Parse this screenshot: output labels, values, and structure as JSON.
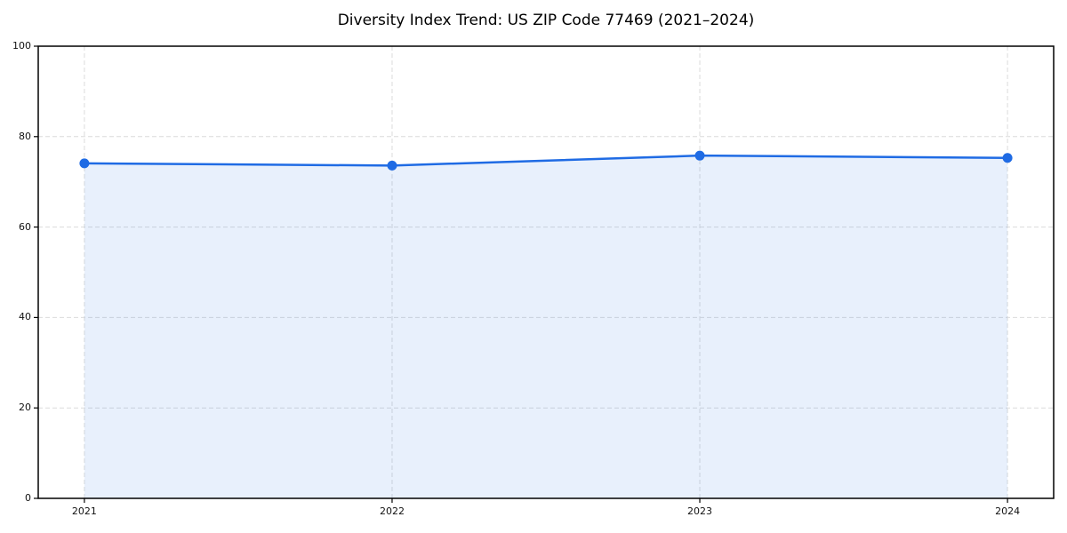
{
  "figure": {
    "title": "Diversity Index Trend: US ZIP Code 77469 (2021–2024)"
  },
  "chart_data": {
    "type": "line",
    "title": "Diversity Index Trend: US ZIP Code 77469 (2021–2024)",
    "x": [
      2021,
      2022,
      2023,
      2024
    ],
    "x_tick_labels": [
      "2021",
      "2022",
      "2023",
      "2024"
    ],
    "series": [
      {
        "name": "Diversity Index",
        "values": [
          74.1,
          73.6,
          75.8,
          75.3
        ]
      }
    ],
    "xlabel": "",
    "ylabel": "",
    "ylim": [
      0,
      100
    ],
    "yticks": [
      0,
      20,
      40,
      60,
      80,
      100
    ],
    "x_margin_fraction": 0.05,
    "grid": true,
    "grid_style": "dashed",
    "legend": false,
    "area_fill": true,
    "marker": "circle",
    "style": {
      "line_color": "#1f6be4",
      "fill_color": "rgba(31, 107, 228, 0.10)",
      "marker_color": "#1f6be4",
      "grid_color": "#dcdcdc",
      "spine_color": "#000000",
      "tick_color": "#000000",
      "background": "#ffffff"
    }
  }
}
